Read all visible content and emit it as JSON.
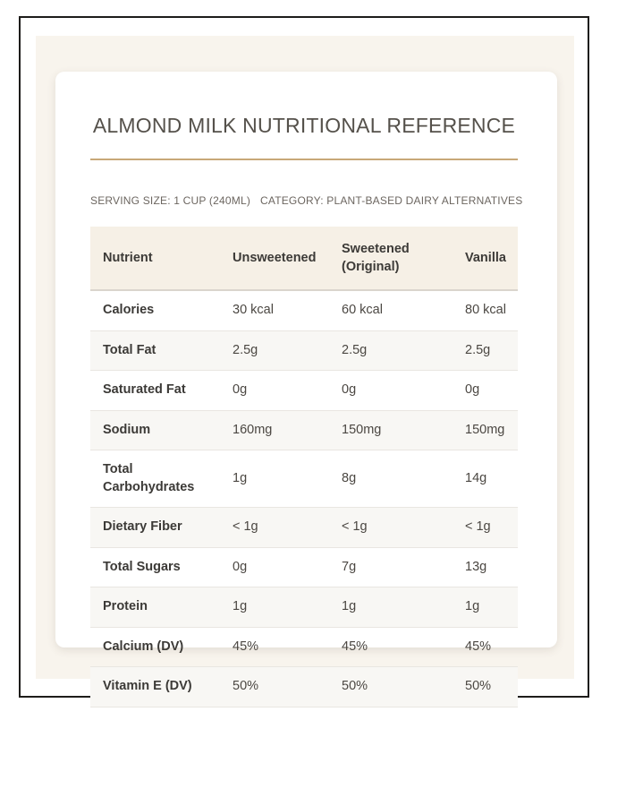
{
  "page": {
    "title": "ALMOND MILK NUTRITIONAL REFERENCE",
    "serving_label": "SERVING SIZE: 1 CUP (240ML)",
    "category_label": "CATEGORY: PLANT-BASED DAIRY ALTERNATIVES"
  },
  "colors": {
    "accent_rule": "#c8a878",
    "panel_bg": "#f8f4ed",
    "table_header_bg": "#f6f0e6",
    "frame_border": "#1d1c1a"
  },
  "table": {
    "columns": [
      "Nutrient",
      "Unsweetened",
      "Sweetened (Original)",
      "Vanilla"
    ],
    "rows": [
      {
        "nutrient": "Calories",
        "values": [
          "30 kcal",
          "60 kcal",
          "80 kcal"
        ]
      },
      {
        "nutrient": "Total Fat",
        "values": [
          "2.5g",
          "2.5g",
          "2.5g"
        ]
      },
      {
        "nutrient": "Saturated Fat",
        "values": [
          "0g",
          "0g",
          "0g"
        ]
      },
      {
        "nutrient": "Sodium",
        "values": [
          "160mg",
          "150mg",
          "150mg"
        ]
      },
      {
        "nutrient": "Total Carbohydrates",
        "values": [
          "1g",
          "8g",
          "14g"
        ]
      },
      {
        "nutrient": "Dietary Fiber",
        "values": [
          "< 1g",
          "< 1g",
          "< 1g"
        ]
      },
      {
        "nutrient": "Total Sugars",
        "values": [
          "0g",
          "7g",
          "13g"
        ]
      },
      {
        "nutrient": "Protein",
        "values": [
          "1g",
          "1g",
          "1g"
        ]
      },
      {
        "nutrient": "Calcium (DV)",
        "values": [
          "45%",
          "45%",
          "45%"
        ]
      },
      {
        "nutrient": "Vitamin E (DV)",
        "values": [
          "50%",
          "50%",
          "50%"
        ]
      }
    ]
  }
}
